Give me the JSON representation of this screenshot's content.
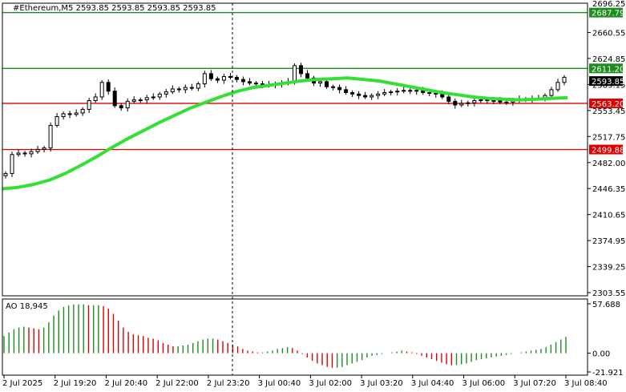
{
  "chart_data": {
    "type": "candlestick",
    "main_panel": {
      "title": "#Ethereum,M5  2593.85 2593.85 2593.85 2593.85",
      "ylim": [
        2303.55,
        2696.25
      ],
      "y_ticks": [
        2660.55,
        2624.85,
        2589.15,
        2553.45,
        2517.75,
        2482.0,
        2446.35,
        2410.65,
        2374.95,
        2339.25,
        2303.55
      ],
      "top_tick_label": "2696.25",
      "x_labels": [
        "2 Jul 2025",
        "2 Jul 19:20",
        "2 Jul 20:40",
        "2 Jul 22:00",
        "2 Jul 23:20",
        "3 Jul 00:40",
        "3 Jul 02:00",
        "3 Jul 03:20",
        "3 Jul 04:40",
        "3 Jul 06:00",
        "3 Jul 07:20",
        "3 Jul 08:40"
      ],
      "price_levels": [
        {
          "value": 2687.79,
          "label": "2687.79",
          "color": "#1e8c1e"
        },
        {
          "value": 2611.2,
          "label": "2611.20",
          "color": "#1e8c1e"
        },
        {
          "value": 2563.2,
          "label": "2563.20",
          "color": "#e00000"
        },
        {
          "value": 2499.88,
          "label": "2499.88",
          "color": "#e00000"
        }
      ],
      "current_price": {
        "value": 2593.85,
        "label": "2593.85"
      },
      "close_series": [
        2467,
        2493,
        2495,
        2494,
        2497,
        2500,
        2502,
        2533,
        2545,
        2549,
        2548,
        2550,
        2555,
        2567,
        2572,
        2592,
        2580,
        2560,
        2557,
        2566,
        2568,
        2568,
        2571,
        2572,
        2576,
        2579,
        2583,
        2582,
        2585,
        2584,
        2590,
        2604,
        2597,
        2595,
        2600,
        2599,
        2596,
        2593,
        2591,
        2590,
        2589,
        2588,
        2590,
        2591,
        2593,
        2615,
        2604,
        2598,
        2591,
        2593,
        2586,
        2585,
        2582,
        2578,
        2576,
        2574,
        2572,
        2574,
        2576,
        2578,
        2579,
        2580,
        2581,
        2580,
        2581,
        2578,
        2577,
        2576,
        2572,
        2566,
        2561,
        2563,
        2564,
        2567,
        2568,
        2567,
        2567,
        2565,
        2565,
        2567,
        2569,
        2569,
        2570,
        2570,
        2574,
        2582,
        2592,
        2599
      ],
      "moving_average": {
        "color": "#33e033",
        "values": [
          2446,
          2448,
          2452,
          2458,
          2467,
          2478,
          2490,
          2503,
          2515,
          2526,
          2537,
          2547,
          2557,
          2565,
          2573,
          2580,
          2585,
          2588,
          2591,
          2594,
          2596,
          2597,
          2598,
          2596,
          2594,
          2590,
          2586,
          2582,
          2578,
          2575,
          2572,
          2570,
          2569,
          2568,
          2569,
          2570,
          2571
        ]
      }
    },
    "indicator_panel": {
      "title": "AO 18,945",
      "ylim": [
        -21.921,
        57.688
      ],
      "y_ticks": [
        57.688,
        0.0,
        -21.921
      ],
      "y_tick_labels": [
        "57.688",
        "0.00",
        "-21.921"
      ],
      "up_color": "#1e8c1e",
      "down_color": "#e00000",
      "values": [
        20,
        24,
        28,
        30,
        31,
        30,
        29,
        28,
        30,
        36,
        44,
        50,
        54,
        56,
        57,
        57,
        57,
        56,
        56,
        56,
        55,
        52,
        46,
        38,
        30,
        25,
        22,
        21,
        20,
        18,
        17,
        15,
        12,
        10,
        8,
        8,
        9,
        10,
        12,
        14,
        16,
        17,
        17,
        16,
        14,
        12,
        10,
        8,
        5,
        3,
        2,
        1,
        1,
        2,
        3,
        5,
        6,
        7,
        6,
        3,
        -1,
        -5,
        -9,
        -12,
        -14,
        -16,
        -17,
        -17,
        -16,
        -14,
        -12,
        -10,
        -8,
        -5,
        -3,
        -2,
        -1,
        0,
        1,
        2,
        3,
        2,
        1,
        -1,
        -3,
        -5,
        -7,
        -9,
        -11,
        -13,
        -14,
        -14,
        -13,
        -12,
        -10,
        -8,
        -7,
        -6,
        -5,
        -4,
        -3,
        -2,
        -1,
        0,
        1,
        2,
        3,
        4,
        5,
        7,
        10,
        13,
        16,
        19
      ]
    }
  }
}
